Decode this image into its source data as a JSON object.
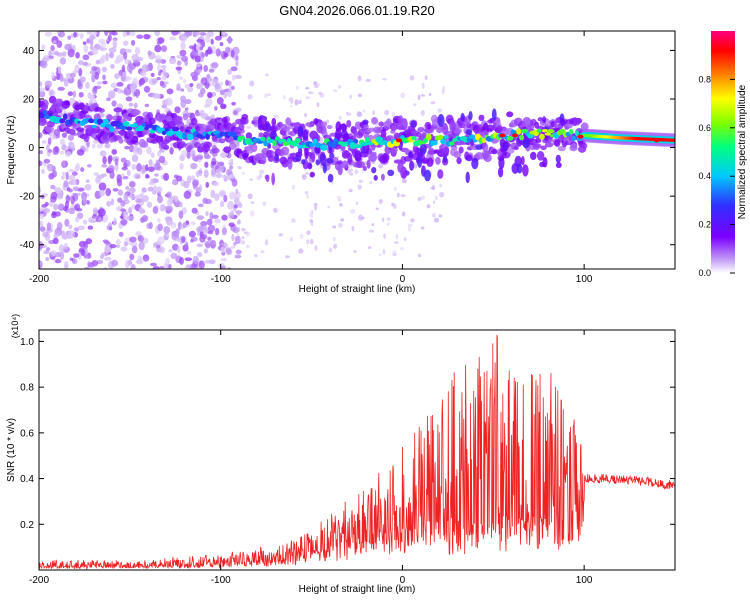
{
  "chart_data": [
    {
      "type": "heatmap",
      "title": "GN04.2026.066.01.19.R20",
      "xlabel": "Height of straight line (km)",
      "ylabel": "Frequency (Hz)",
      "xlim": [
        -200,
        150
      ],
      "ylim": [
        -50,
        48
      ],
      "x_ticks": [
        -200,
        -100,
        0,
        100
      ],
      "y_ticks": [
        -40,
        -20,
        0,
        20,
        40
      ],
      "colorbar": {
        "label": "Normalized spectral amplitude",
        "range": [
          0.0,
          1.0
        ],
        "ticks": [
          "0.0",
          "0.2",
          "0.4",
          "0.6",
          "0.8"
        ],
        "tick_values": [
          0.0,
          0.2,
          0.4,
          0.6,
          0.8
        ],
        "colors": [
          "#ffffff",
          "#c7a6f6",
          "#7a00ff",
          "#3030ff",
          "#00c8ff",
          "#00ff80",
          "#7fff00",
          "#ffff00",
          "#ff8000",
          "#ff0000",
          "#ff0080"
        ]
      },
      "ridge": {
        "description": "dominant frequency track",
        "x": [
          -200,
          -180,
          -160,
          -140,
          -120,
          -100,
          -80,
          -60,
          -40,
          -20,
          0,
          20,
          40,
          60,
          80,
          100,
          120,
          150
        ],
        "y": [
          14,
          11,
          9,
          8,
          6,
          5,
          3,
          2,
          1,
          2,
          3,
          3,
          3,
          5,
          6,
          5,
          4,
          3
        ]
      }
    },
    {
      "type": "line",
      "xlabel": "Height of straight line (km)",
      "ylabel": "SNR (10 * v/v)",
      "y_multiplier": "(x10⁴)",
      "xlim": [
        -200,
        150
      ],
      "ylim": [
        0.0,
        1.05
      ],
      "x_ticks": [
        -200,
        -100,
        0,
        100
      ],
      "y_ticks": [
        0.2,
        0.4,
        0.6,
        0.8,
        1.0
      ],
      "y_tick_labels": [
        "0.2",
        "0.4",
        "0.6",
        "0.8",
        "1.0"
      ],
      "color": "#ee2222",
      "series": [
        {
          "name": "SNR",
          "description": "approximate envelope (base level and typical peak) vs height",
          "x": [
            -200,
            -150,
            -100,
            -80,
            -60,
            -50,
            -40,
            -30,
            -20,
            -10,
            0,
            10,
            20,
            30,
            40,
            50,
            60,
            70,
            80,
            90,
            100,
            110,
            130,
            150
          ],
          "base": [
            0.02,
            0.02,
            0.03,
            0.05,
            0.07,
            0.1,
            0.13,
            0.17,
            0.2,
            0.22,
            0.22,
            0.24,
            0.25,
            0.24,
            0.26,
            0.28,
            0.3,
            0.32,
            0.3,
            0.28,
            0.4,
            0.4,
            0.39,
            0.37
          ],
          "peak": [
            0.04,
            0.04,
            0.06,
            0.09,
            0.13,
            0.18,
            0.25,
            0.3,
            0.38,
            0.45,
            0.48,
            0.58,
            0.8,
            0.9,
            0.82,
            1.0,
            0.88,
            0.88,
            0.86,
            0.78,
            0.44,
            0.43,
            0.42,
            0.41
          ]
        }
      ]
    }
  ]
}
